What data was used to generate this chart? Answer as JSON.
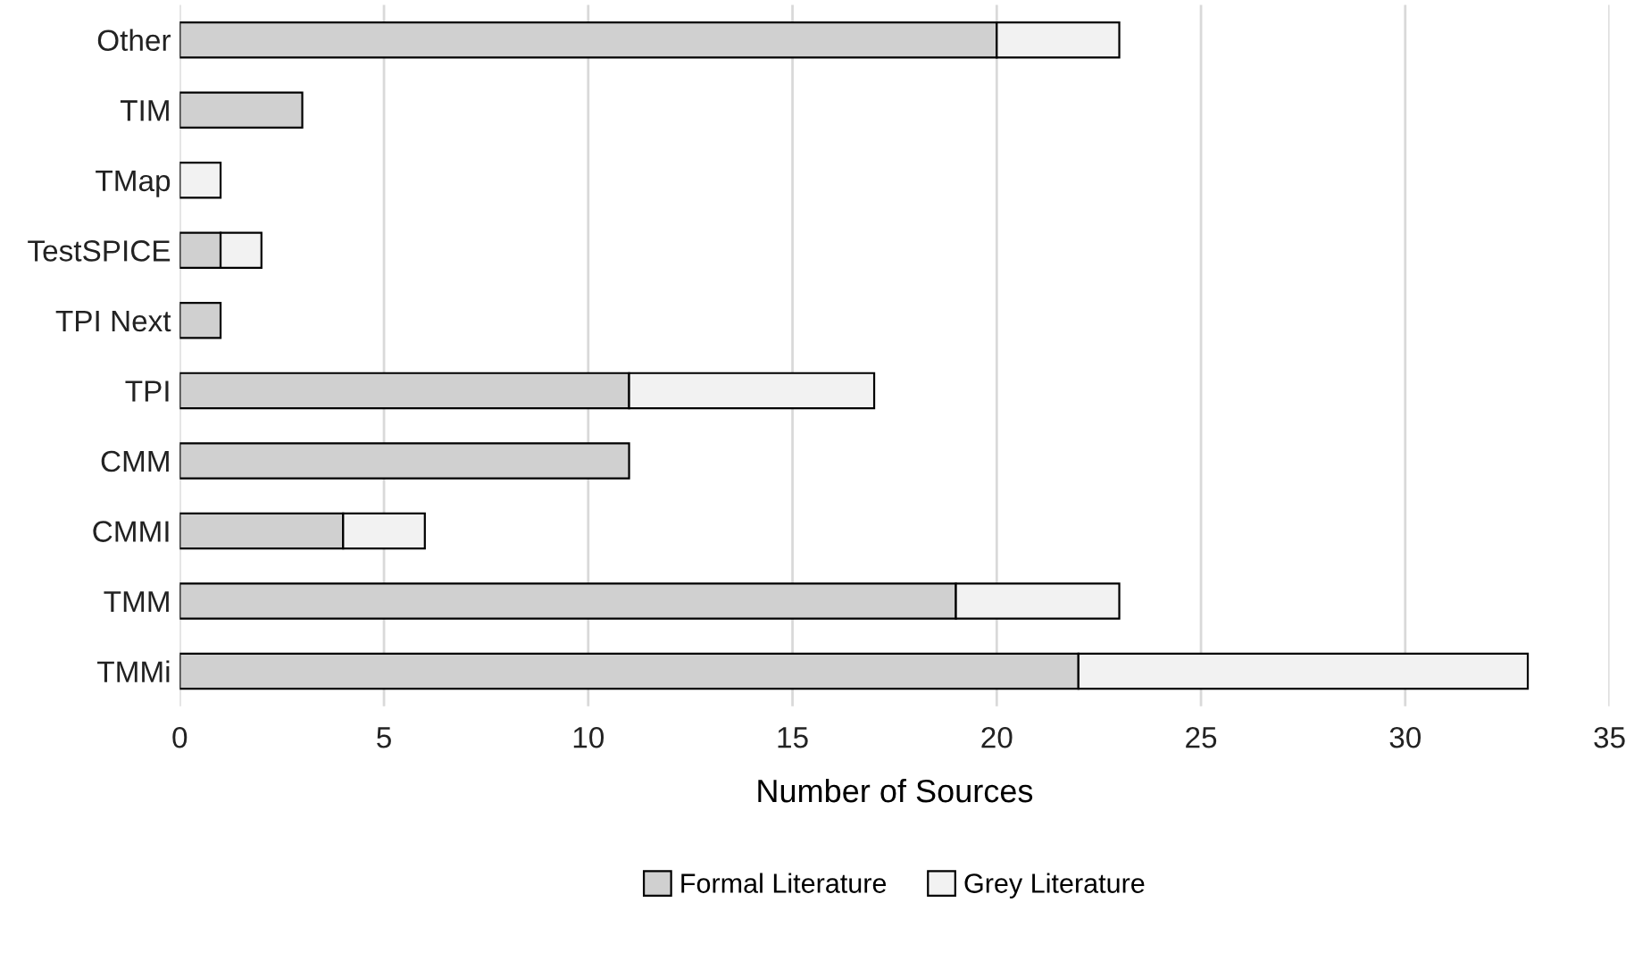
{
  "chart_data": {
    "type": "bar",
    "orientation": "horizontal",
    "stacked": true,
    "categories": [
      "Other",
      "TIM",
      "TMap",
      "TestSPICE",
      "TPI Next",
      "TPI",
      "CMM",
      "CMMI",
      "TMM",
      "TMMi"
    ],
    "series": [
      {
        "name": "Formal Literature",
        "color": "#d0d0d0",
        "values": [
          20,
          3,
          0,
          1,
          1,
          11,
          11,
          4,
          19,
          22
        ]
      },
      {
        "name": "Grey Literature",
        "color": "#f2f2f2",
        "values": [
          3,
          0,
          1,
          1,
          0,
          6,
          0,
          2,
          4,
          11
        ]
      }
    ],
    "xlabel": "Number of Sources",
    "xlim": [
      0,
      35
    ],
    "xticks": [
      0,
      5,
      10,
      15,
      20,
      25,
      30,
      35
    ],
    "grid": "x",
    "legend": "bottom"
  }
}
